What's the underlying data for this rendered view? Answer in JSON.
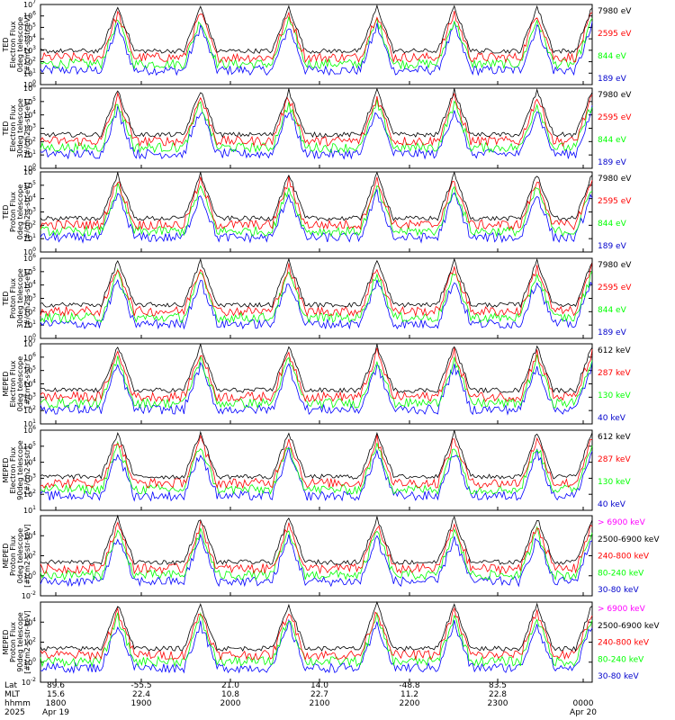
{
  "colors": {
    "black": "#000000",
    "red": "#ff0000",
    "green": "#00ff00",
    "blue": "#0000ff",
    "magenta": "#ff00ff",
    "navy": "#0000cc"
  },
  "footer": {
    "row_labels": [
      "Lat",
      "MLT",
      "hhmm",
      "2025"
    ],
    "ticks": [
      {
        "lat": "89.6",
        "mlt": "15.6",
        "hhmm": "1800",
        "date": "Apr 19"
      },
      {
        "lat": "-55.5",
        "mlt": "22.4",
        "hhmm": "1900",
        "date": ""
      },
      {
        "lat": "21.0",
        "mlt": "10.8",
        "hhmm": "2000",
        "date": ""
      },
      {
        "lat": "14.0",
        "mlt": "22.7",
        "hhmm": "2100",
        "date": ""
      },
      {
        "lat": "-48.8",
        "mlt": "11.2",
        "hhmm": "2200",
        "date": ""
      },
      {
        "lat": "83.5",
        "mlt": "22.8",
        "hhmm": "2300",
        "date": ""
      },
      {
        "lat": "",
        "mlt": "",
        "hhmm": "0000",
        "date": "Apr 20"
      }
    ]
  },
  "chart_data": [
    {
      "type": "line",
      "ylabel": [
        "TED",
        "Electron Flux",
        "0deg telescope",
        "[#/cm2-s-str-eV]"
      ],
      "ylog": true,
      "ylim_exp": [
        0,
        7
      ],
      "ytick_labels": [
        "10^0",
        "10^1",
        "10^2",
        "10^3",
        "10^4",
        "10^5",
        "10^6",
        "10^7"
      ],
      "xlim": [
        "1800",
        "0000"
      ],
      "series": [
        {
          "name": "7980 eV",
          "color": "#000000"
        },
        {
          "name": "2595 eV",
          "color": "#ff0000"
        },
        {
          "name": "844 eV",
          "color": "#00ff00"
        },
        {
          "name": "189 eV",
          "color": "#0000ff"
        }
      ]
    },
    {
      "type": "line",
      "ylabel": [
        "TED",
        "Electron Flux",
        "30deg telescope",
        "[#/cm2-s-str-eV]"
      ],
      "ylog": true,
      "ylim_exp": [
        0,
        6
      ],
      "ytick_labels": [
        "10^0",
        "10^1",
        "10^2",
        "10^3",
        "10^4",
        "10^5",
        "10^6"
      ],
      "xlim": [
        "1800",
        "0000"
      ],
      "series": [
        {
          "name": "7980 eV",
          "color": "#000000"
        },
        {
          "name": "2595 eV",
          "color": "#ff0000"
        },
        {
          "name": "844 eV",
          "color": "#00ff00"
        },
        {
          "name": "189 eV",
          "color": "#0000ff"
        }
      ]
    },
    {
      "type": "line",
      "ylabel": [
        "TED",
        "Proton Flux",
        "0deg telescope",
        "[#/cm2-s-str-eV]"
      ],
      "ylog": true,
      "ylim_exp": [
        0,
        6
      ],
      "ytick_labels": [
        "10^0",
        "10^1",
        "10^2",
        "10^3",
        "10^4",
        "10^5",
        "10^6"
      ],
      "xlim": [
        "1800",
        "0000"
      ],
      "series": [
        {
          "name": "7980 eV",
          "color": "#000000"
        },
        {
          "name": "2595 eV",
          "color": "#ff0000"
        },
        {
          "name": "844 eV",
          "color": "#00ff00"
        },
        {
          "name": "189 eV",
          "color": "#0000ff"
        }
      ]
    },
    {
      "type": "line",
      "ylabel": [
        "TED",
        "Proton Flux",
        "30deg telescope",
        "[#/cm2-s-str-eV]"
      ],
      "ylog": true,
      "ylim_exp": [
        0,
        6
      ],
      "ytick_labels": [
        "10^0",
        "10^1",
        "10^2",
        "10^3",
        "10^4",
        "10^5",
        "10^6"
      ],
      "xlim": [
        "1800",
        "0000"
      ],
      "series": [
        {
          "name": "7980 eV",
          "color": "#000000"
        },
        {
          "name": "2595 eV",
          "color": "#ff0000"
        },
        {
          "name": "844 eV",
          "color": "#00ff00"
        },
        {
          "name": "189 eV",
          "color": "#0000ff"
        }
      ]
    },
    {
      "type": "line",
      "ylabel": [
        "MEPED",
        "Electron Flux",
        "0deg telescope",
        "[#/cm2-s-str]"
      ],
      "ylog": true,
      "ylim_exp": [
        1,
        7
      ],
      "ytick_labels": [
        "10^1",
        "10^2",
        "10^3",
        "10^4",
        "10^5",
        "10^6",
        "10^7"
      ],
      "xlim": [
        "1800",
        "0000"
      ],
      "series": [
        {
          "name": "612 keV",
          "color": "#000000"
        },
        {
          "name": "287 keV",
          "color": "#ff0000"
        },
        {
          "name": "130 keV",
          "color": "#00ff00"
        },
        {
          "name": "40 keV",
          "color": "#0000ff"
        }
      ]
    },
    {
      "type": "line",
      "ylabel": [
        "MEPED",
        "Electron Flux",
        "90deg telescope",
        "[#/cm2-s-str]"
      ],
      "ylog": true,
      "ylim_exp": [
        1,
        6
      ],
      "ytick_labels": [
        "10^1",
        "10^2",
        "10^3",
        "10^4",
        "10^5",
        "10^6"
      ],
      "xlim": [
        "1800",
        "0000"
      ],
      "series": [
        {
          "name": "612 keV",
          "color": "#000000"
        },
        {
          "name": "287 keV",
          "color": "#ff0000"
        },
        {
          "name": "130 keV",
          "color": "#00ff00"
        },
        {
          "name": "40 keV",
          "color": "#0000ff"
        }
      ]
    },
    {
      "type": "line",
      "ylabel": [
        "MEPED",
        "Proton Flux",
        "0deg telescope",
        "[#/cm2-s-str-keV]"
      ],
      "ylog": true,
      "ylim_exp": [
        -2,
        6
      ],
      "ytick_labels": [
        "10^-2",
        "10^0",
        "10^2",
        "10^4"
      ],
      "ytick_exps": [
        -2,
        0,
        2,
        4
      ],
      "xlim": [
        "1800",
        "0000"
      ],
      "series": [
        {
          "name": "> 6900 keV",
          "color": "#ff00ff"
        },
        {
          "name": "2500-6900 keV",
          "color": "#000000"
        },
        {
          "name": "240-800 keV",
          "color": "#ff0000"
        },
        {
          "name": "80-240 keV",
          "color": "#00ff00"
        },
        {
          "name": "30-80 keV",
          "color": "#0000ff"
        }
      ]
    },
    {
      "type": "line",
      "ylabel": [
        "MEPED",
        "Proton Flux",
        "90deg telescope",
        "[#/cm2-s-str-keV]"
      ],
      "ylog": true,
      "ylim_exp": [
        -2,
        6
      ],
      "ytick_labels": [
        "10^-2",
        "10^0",
        "10^2",
        "10^4"
      ],
      "ytick_exps": [
        -2,
        0,
        2,
        4
      ],
      "xlim": [
        "1800",
        "0000"
      ],
      "series": [
        {
          "name": "> 6900 keV",
          "color": "#ff00ff"
        },
        {
          "name": "2500-6900 keV",
          "color": "#000000"
        },
        {
          "name": "240-800 keV",
          "color": "#ff0000"
        },
        {
          "name": "80-240 keV",
          "color": "#00ff00"
        },
        {
          "name": "30-80 keV",
          "color": "#0000ff"
        }
      ]
    }
  ]
}
